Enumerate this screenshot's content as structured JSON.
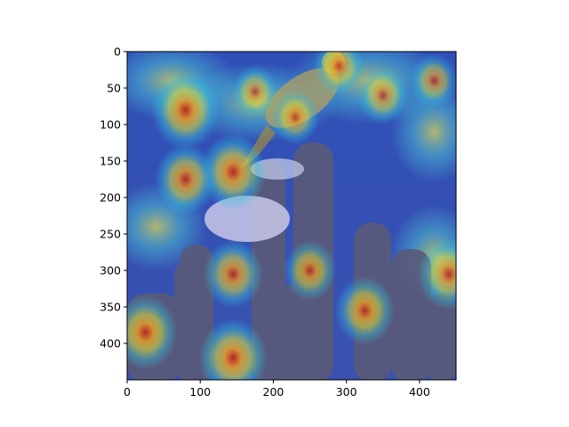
{
  "chart_data": {
    "type": "heatmap",
    "title": "",
    "xlabel": "",
    "ylabel": "",
    "xlim": [
      0,
      450
    ],
    "ylim": [
      450,
      0
    ],
    "x_ticks": [
      0,
      100,
      200,
      300,
      400
    ],
    "y_ticks": [
      0,
      50,
      100,
      150,
      200,
      250,
      300,
      350,
      400
    ],
    "x_tick_labels": [
      "0",
      "100",
      "200",
      "300",
      "400"
    ],
    "y_tick_labels": [
      "0",
      "50",
      "100",
      "150",
      "200",
      "250",
      "300",
      "350",
      "400"
    ],
    "colormap": "jet",
    "grid": false,
    "background_image": "saliency heatmap overlaid on a photo of a bird perched on a flowering cactus",
    "hotspots": [
      {
        "x": 80,
        "y": 80,
        "intensity": 0.95
      },
      {
        "x": 145,
        "y": 165,
        "intensity": 0.9
      },
      {
        "x": 80,
        "y": 175,
        "intensity": 0.8
      },
      {
        "x": 25,
        "y": 385,
        "intensity": 0.85
      },
      {
        "x": 145,
        "y": 420,
        "intensity": 0.95
      },
      {
        "x": 145,
        "y": 305,
        "intensity": 0.75
      },
      {
        "x": 250,
        "y": 300,
        "intensity": 0.6
      },
      {
        "x": 325,
        "y": 355,
        "intensity": 0.75
      },
      {
        "x": 440,
        "y": 305,
        "intensity": 0.8
      },
      {
        "x": 290,
        "y": 20,
        "intensity": 0.55
      },
      {
        "x": 350,
        "y": 60,
        "intensity": 0.55
      },
      {
        "x": 420,
        "y": 40,
        "intensity": 0.5
      },
      {
        "x": 230,
        "y": 90,
        "intensity": 0.5
      },
      {
        "x": 175,
        "y": 55,
        "intensity": 0.45
      }
    ]
  }
}
